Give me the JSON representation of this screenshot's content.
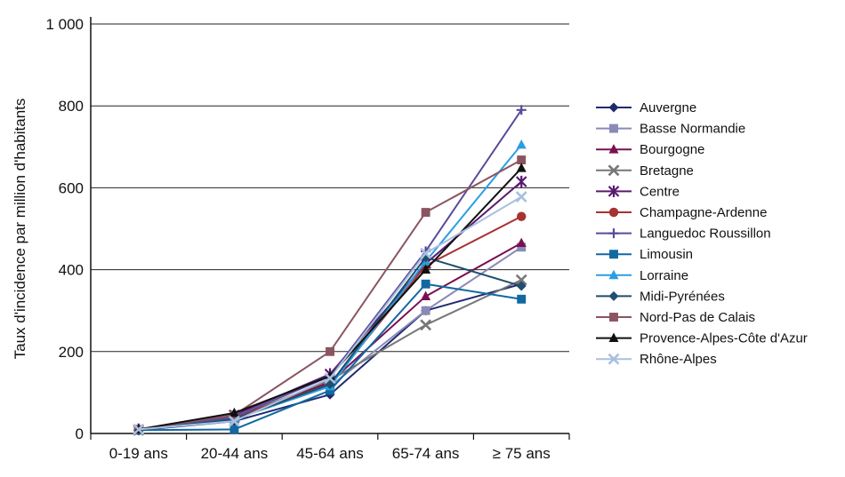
{
  "chart_data": {
    "type": "line",
    "title": "",
    "xlabel": "",
    "ylabel": "Taux d'incidence par million d'habitants",
    "categories": [
      "0-19 ans",
      "20-44 ans",
      "45-64 ans",
      "65-74 ans",
      "≥ 75 ans"
    ],
    "ylim": [
      0,
      1000
    ],
    "yticks": [
      0,
      200,
      400,
      600,
      800,
      1000
    ],
    "ytick_labels": [
      "0",
      "200",
      "400",
      "600",
      "800",
      "1 000"
    ],
    "grid": "horizontal",
    "legend": "right",
    "series": [
      {
        "name": "Auvergne",
        "color": "#1f2a6e",
        "marker": "diamond",
        "values": [
          8,
          30,
          95,
          300,
          365
        ]
      },
      {
        "name": "Basse Normandie",
        "color": "#8a8ab8",
        "marker": "square",
        "values": [
          10,
          35,
          115,
          300,
          455
        ]
      },
      {
        "name": "Bourgogne",
        "color": "#7a1050",
        "marker": "triangle",
        "values": [
          8,
          40,
          125,
          335,
          465
        ]
      },
      {
        "name": "Bretagne",
        "color": "#777777",
        "marker": "x",
        "values": [
          8,
          38,
          130,
          265,
          375
        ]
      },
      {
        "name": "Centre",
        "color": "#5a1a70",
        "marker": "star",
        "values": [
          10,
          45,
          145,
          415,
          615
        ]
      },
      {
        "name": "Champagne-Ardenne",
        "color": "#a83232",
        "marker": "circle",
        "values": [
          10,
          40,
          120,
          410,
          530
        ]
      },
      {
        "name": "Languedoc Roussillon",
        "color": "#5a4a98",
        "marker": "plus",
        "values": [
          8,
          40,
          140,
          445,
          790
        ]
      },
      {
        "name": "Limousin",
        "color": "#1268a0",
        "marker": "square",
        "values": [
          8,
          10,
          105,
          365,
          328
        ]
      },
      {
        "name": "Lorraine",
        "color": "#2a9ee0",
        "marker": "triangle",
        "values": [
          8,
          35,
          115,
          420,
          705
        ]
      },
      {
        "name": "Midi-Pyrénées",
        "color": "#1f4e6e",
        "marker": "diamond",
        "values": [
          8,
          35,
          120,
          430,
          360
        ]
      },
      {
        "name": "Nord-Pas de Calais",
        "color": "#8a5560",
        "marker": "square",
        "values": [
          10,
          45,
          200,
          540,
          668
        ]
      },
      {
        "name": "Provence-Alpes-Côte d'Azur",
        "color": "#111111",
        "marker": "triangle",
        "values": [
          10,
          50,
          140,
          400,
          648
        ]
      },
      {
        "name": "Rhône-Alpes",
        "color": "#a8c0e0",
        "marker": "x",
        "values": [
          10,
          30,
          135,
          440,
          578
        ]
      }
    ]
  }
}
